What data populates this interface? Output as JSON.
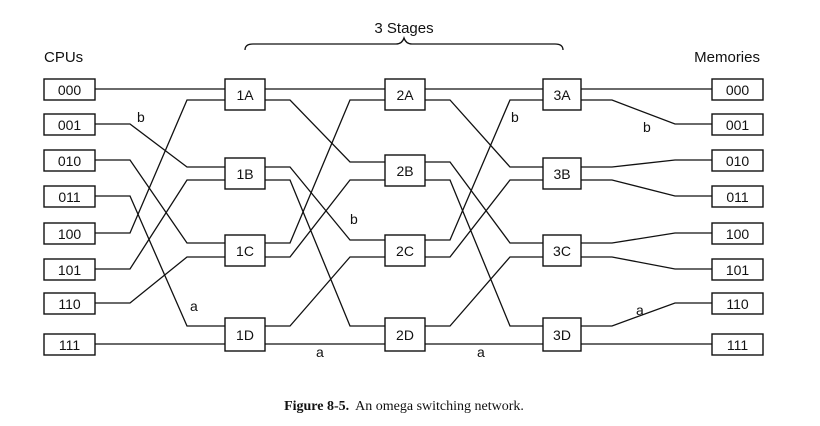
{
  "stages_label": "3 Stages",
  "cpus_header": "CPUs",
  "memories_header": "Memories",
  "cpus": [
    "000",
    "001",
    "010",
    "011",
    "100",
    "101",
    "110",
    "111"
  ],
  "memories": [
    "000",
    "001",
    "010",
    "011",
    "100",
    "101",
    "110",
    "111"
  ],
  "switches": {
    "stage1": [
      "1A",
      "1B",
      "1C",
      "1D"
    ],
    "stage2": [
      "2A",
      "2B",
      "2C",
      "2D"
    ],
    "stage3": [
      "3A",
      "3B",
      "3C",
      "3D"
    ]
  },
  "path_labels": {
    "b1": "b",
    "b2": "b",
    "b3": "b",
    "b4": "b",
    "a1": "a",
    "a2": "a",
    "a3": "a",
    "a4": "a"
  },
  "caption": {
    "bold": "Figure 8-5.",
    "text": "An omega switching network."
  }
}
